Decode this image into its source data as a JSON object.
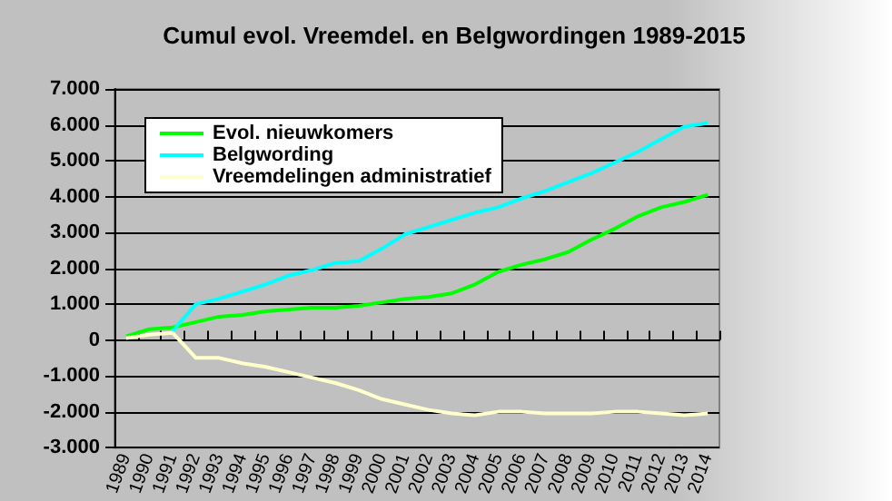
{
  "chart_data": {
    "type": "line",
    "title": "Cumul evol. Vreemdel. en Belgwordingen 1989-2015",
    "categories": [
      "1989",
      "1990",
      "1991",
      "1992",
      "1993",
      "1994",
      "1995",
      "1996",
      "1997",
      "1998",
      "1999",
      "2000",
      "2001",
      "2002",
      "2003",
      "2004",
      "2005",
      "2006",
      "2007",
      "2008",
      "2009",
      "2010",
      "2011",
      "2012",
      "2013",
      "2014"
    ],
    "series": [
      {
        "name": "Evol. nieuwkomers",
        "color": "#00ff00",
        "values": [
          100,
          300,
          350,
          500,
          650,
          700,
          800,
          850,
          900,
          900,
          950,
          1050,
          1150,
          1200,
          1300,
          1550,
          1900,
          2100,
          2250,
          2450,
          2800,
          3100,
          3450,
          3700,
          3850,
          4050
        ]
      },
      {
        "name": "Belgwording",
        "color": "#00ffff",
        "values": [
          null,
          null,
          250,
          1000,
          1150,
          1350,
          1550,
          1800,
          1950,
          2150,
          2200,
          2550,
          2950,
          3150,
          3350,
          3550,
          3700,
          3950,
          4150,
          4400,
          4650,
          4950,
          5250,
          5600,
          5950,
          6050
        ]
      },
      {
        "name": "Vreemdelingen administratief",
        "color": "#ffffcc",
        "values": [
          50,
          150,
          200,
          -500,
          -500,
          -650,
          -750,
          -900,
          -1050,
          -1200,
          -1400,
          -1650,
          -1800,
          -1950,
          -2050,
          -2100,
          -2000,
          -2000,
          -2050,
          -2050,
          -2050,
          -2000,
          -2000,
          -2050,
          -2100,
          -2050
        ]
      }
    ],
    "ylim": [
      -3000,
      7000
    ],
    "yticks": [
      {
        "value": -3000,
        "label": "-3.000"
      },
      {
        "value": -2000,
        "label": "-2.000"
      },
      {
        "value": -1000,
        "label": "-1.000"
      },
      {
        "value": 0,
        "label": "0"
      },
      {
        "value": 1000,
        "label": "1.000"
      },
      {
        "value": 2000,
        "label": "2.000"
      },
      {
        "value": 3000,
        "label": "3.000"
      },
      {
        "value": 4000,
        "label": "4.000"
      },
      {
        "value": 5000,
        "label": "5.000"
      },
      {
        "value": 6000,
        "label": "6.000"
      },
      {
        "value": 7000,
        "label": "7.000"
      }
    ],
    "grid": "y",
    "legend": "top left",
    "marker": "none",
    "line_style": "solid"
  }
}
